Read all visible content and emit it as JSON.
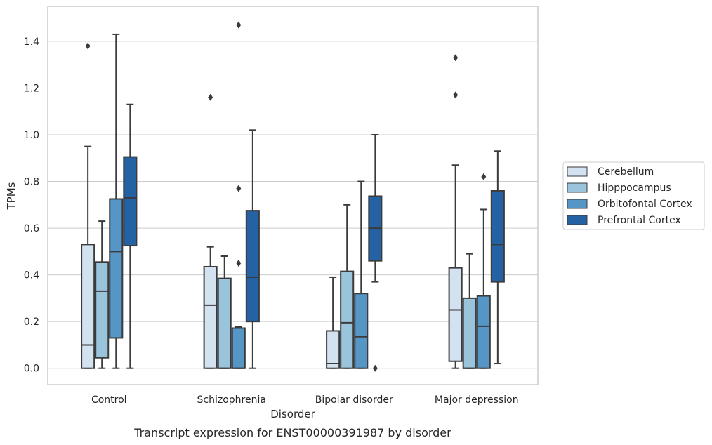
{
  "chart_data": {
    "type": "box",
    "categories": [
      "Control",
      "Schizophrenia",
      "Bipolar disorder",
      "Major depression"
    ],
    "xlabel": "Disorder",
    "ylabel": "TPMs",
    "caption": "Transcript expression for ENST00000391987 by disorder",
    "ylim": [
      -0.07,
      1.55
    ],
    "yticks": [
      "0.0",
      "0.2",
      "0.4",
      "0.6",
      "0.8",
      "1.0",
      "1.2",
      "1.4"
    ],
    "ytick_values": [
      0.0,
      0.2,
      0.4,
      0.6,
      0.8,
      1.0,
      1.2,
      1.4
    ],
    "grid": "horizontal",
    "legend_position": "right",
    "series": [
      {
        "name": "Cerebellum",
        "color": "#d3e2f0",
        "boxes": [
          {
            "category": "Control",
            "whisker_low": 0.0,
            "q1": 0.0,
            "median": 0.1,
            "q3": 0.53,
            "whisker_high": 0.95,
            "outliers": [
              1.38
            ]
          },
          {
            "category": "Schizophrenia",
            "whisker_low": 0.0,
            "q1": 0.0,
            "median": 0.27,
            "q3": 0.435,
            "whisker_high": 0.52,
            "outliers": [
              1.16
            ]
          },
          {
            "category": "Bipolar disorder",
            "whisker_low": 0.0,
            "q1": 0.0,
            "median": 0.02,
            "q3": 0.16,
            "whisker_high": 0.39,
            "outliers": []
          },
          {
            "category": "Major depression",
            "whisker_low": 0.0,
            "q1": 0.03,
            "median": 0.25,
            "q3": 0.43,
            "whisker_high": 0.87,
            "outliers": [
              1.17,
              1.33
            ]
          }
        ]
      },
      {
        "name": "Hipppocampus",
        "color": "#9ac3dc",
        "boxes": [
          {
            "category": "Control",
            "whisker_low": 0.0,
            "q1": 0.045,
            "median": 0.33,
            "q3": 0.455,
            "whisker_high": 0.63,
            "outliers": []
          },
          {
            "category": "Schizophrenia",
            "whisker_low": 0.0,
            "q1": 0.0,
            "median": 0.0,
            "q3": 0.385,
            "whisker_high": 0.48,
            "outliers": []
          },
          {
            "category": "Bipolar disorder",
            "whisker_low": 0.0,
            "q1": 0.0,
            "median": 0.195,
            "q3": 0.415,
            "whisker_high": 0.7,
            "outliers": []
          },
          {
            "category": "Major depression",
            "whisker_low": 0.0,
            "q1": 0.0,
            "median": 0.0,
            "q3": 0.3,
            "whisker_high": 0.49,
            "outliers": []
          }
        ]
      },
      {
        "name": "Orbitofontal Cortex",
        "color": "#5596c7",
        "boxes": [
          {
            "category": "Control",
            "whisker_low": 0.0,
            "q1": 0.13,
            "median": 0.5,
            "q3": 0.725,
            "whisker_high": 1.43,
            "outliers": []
          },
          {
            "category": "Schizophrenia",
            "whisker_low": 0.0,
            "q1": 0.0,
            "median": 0.0,
            "q3": 0.172,
            "whisker_high": 0.178,
            "outliers": [
              0.45,
              0.77,
              1.47
            ]
          },
          {
            "category": "Bipolar disorder",
            "whisker_low": 0.0,
            "q1": 0.0,
            "median": 0.135,
            "q3": 0.32,
            "whisker_high": 0.8,
            "outliers": []
          },
          {
            "category": "Major depression",
            "whisker_low": 0.0,
            "q1": 0.0,
            "median": 0.18,
            "q3": 0.31,
            "whisker_high": 0.68,
            "outliers": [
              0.82
            ]
          }
        ]
      },
      {
        "name": "Prefrontal Cortex",
        "color": "#2462a3",
        "boxes": [
          {
            "category": "Control",
            "whisker_low": 0.0,
            "q1": 0.525,
            "median": 0.73,
            "q3": 0.905,
            "whisker_high": 1.13,
            "outliers": []
          },
          {
            "category": "Schizophrenia",
            "whisker_low": 0.0,
            "q1": 0.2,
            "median": 0.39,
            "q3": 0.675,
            "whisker_high": 1.02,
            "outliers": []
          },
          {
            "category": "Bipolar disorder",
            "whisker_low": 0.37,
            "q1": 0.46,
            "median": 0.6,
            "q3": 0.737,
            "whisker_high": 1.0,
            "outliers": [
              0.0
            ]
          },
          {
            "category": "Major depression",
            "whisker_low": 0.02,
            "q1": 0.37,
            "median": 0.53,
            "q3": 0.76,
            "whisker_high": 0.93,
            "outliers": []
          }
        ]
      }
    ]
  }
}
